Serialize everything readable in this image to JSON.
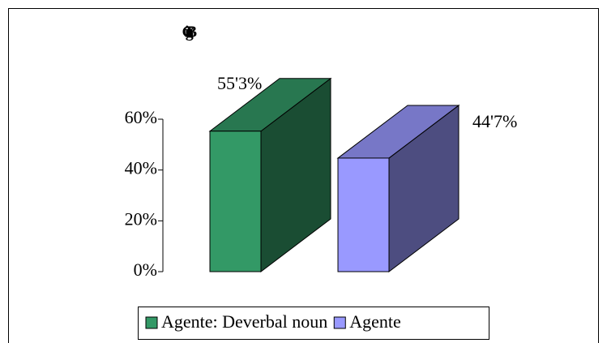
{
  "chart_data": {
    "type": "bar3d",
    "title": "iGtgB",
    "series": [
      {
        "name": "Agente: Deverbal noun",
        "color": "#339966",
        "values": [
          55.3
        ],
        "value_labels": [
          "55'3%"
        ]
      },
      {
        "name": "Agente",
        "color": "#9999ff",
        "values": [
          44.7
        ],
        "value_labels": [
          "44'7%"
        ]
      }
    ],
    "ylim": [
      0,
      60
    ],
    "yticks": [
      {
        "value": 0,
        "label": "0%"
      },
      {
        "value": 20,
        "label": "20%"
      },
      {
        "value": 40,
        "label": "40%"
      },
      {
        "value": 60,
        "label": "60%"
      }
    ],
    "legend": "bottom"
  }
}
